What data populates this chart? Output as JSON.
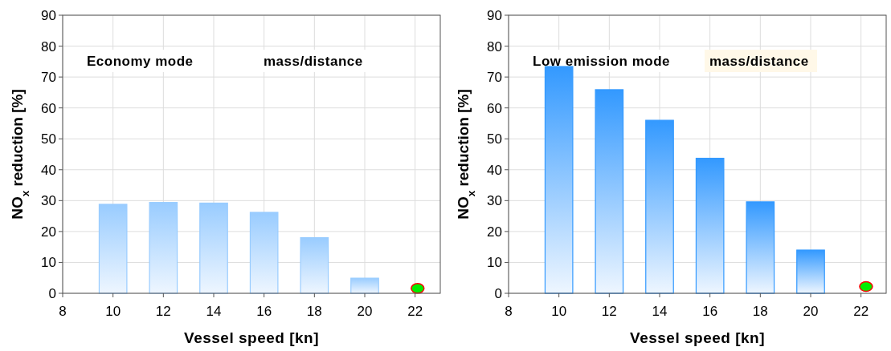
{
  "chart_data": [
    {
      "type": "bar",
      "xlabel": "Vessel speed [kn]",
      "ylabel": "NO$_{x}$ reduction [%]",
      "annotations": [
        "Economy mode",
        "mass/distance"
      ],
      "xlim": [
        8,
        23
      ],
      "xticks": [
        8,
        10,
        12,
        14,
        16,
        18,
        20,
        22
      ],
      "ylim": [
        0,
        90
      ],
      "yticks": [
        0,
        10,
        20,
        30,
        40,
        50,
        60,
        70,
        80,
        90
      ],
      "grid": true,
      "series": [
        {
          "color": "#99ccff",
          "x": [
            10,
            12,
            14,
            16,
            18,
            20
          ],
          "values": [
            28.8,
            29.4,
            29.2,
            26.2,
            18,
            4.9
          ]
        },
        {
          "type": "scatter",
          "color": "#00ee00",
          "x": [
            22.1
          ],
          "values": [
            1.6
          ],
          "marker": "circle"
        }
      ]
    },
    {
      "type": "bar",
      "xlabel": "Vessel speed [kn]",
      "ylabel": "NO$_{x}$ reduction [%]",
      "annotations": [
        "Low emission mode",
        "mass/distance"
      ],
      "xlim": [
        8,
        23
      ],
      "xticks": [
        8,
        10,
        12,
        14,
        16,
        18,
        20,
        22
      ],
      "ylim": [
        0,
        90
      ],
      "yticks": [
        0,
        10,
        20,
        30,
        40,
        50,
        60,
        70,
        80,
        90
      ],
      "grid": true,
      "series": [
        {
          "color": "#3399ff",
          "x": [
            10,
            12,
            14,
            16,
            18,
            20
          ],
          "values": [
            73.4,
            65.9,
            56,
            43.7,
            29.6,
            14
          ]
        },
        {
          "type": "scatter",
          "color": "#00ee00",
          "x": [
            22.2
          ],
          "values": [
            2.2
          ],
          "marker": "circle"
        }
      ]
    }
  ]
}
